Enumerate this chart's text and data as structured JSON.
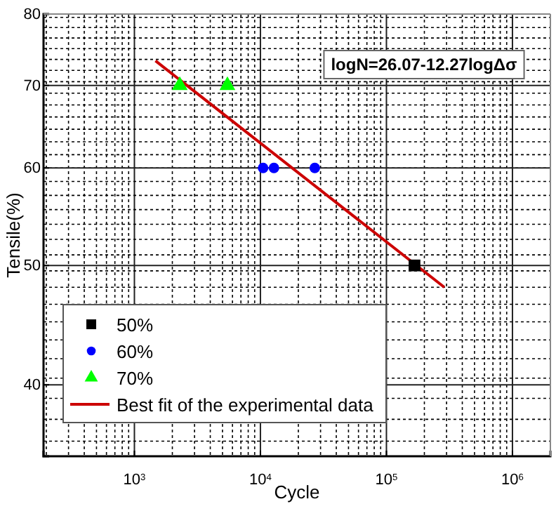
{
  "chart_data": {
    "type": "scatter",
    "xlabel": "Cycle",
    "ylabel": "Tensile(%)",
    "log": "xy",
    "grid": true,
    "legend": "bottom left",
    "xlim": [
      190,
      2000000
    ],
    "ylim": [
      35,
      80
    ],
    "xticks": [
      {
        "value": 1000,
        "label": "10$^{3}$"
      },
      {
        "value": 10000,
        "label": "10$^{4}$"
      },
      {
        "value": 100000,
        "label": "10$^{5}$"
      },
      {
        "value": 1000000,
        "label": "10$^{6}$"
      }
    ],
    "yticks": [
      40,
      50,
      60,
      70,
      80
    ],
    "annotations": [
      "logN=26.07-12.27logΔσ"
    ],
    "series": [
      {
        "name": "50%",
        "color": "#000000",
        "marker": "square",
        "x": [
          167000
        ],
        "values": [
          50
        ]
      },
      {
        "name": "60%",
        "color": "#0000ff",
        "marker": "circle",
        "x": [
          10500,
          12800,
          27000
        ],
        "values": [
          60,
          60,
          60
        ]
      },
      {
        "name": "70%",
        "color": "#00ff00",
        "marker": "triangle",
        "x": [
          2290,
          5470
        ],
        "values": [
          70,
          70
        ]
      },
      {
        "name": "Best fit of the experimental data",
        "type": "line",
        "color": "#cc0000",
        "marker": "none",
        "x": [
          1470,
          288000
        ],
        "values": [
          73.3,
          48.0
        ]
      }
    ]
  }
}
